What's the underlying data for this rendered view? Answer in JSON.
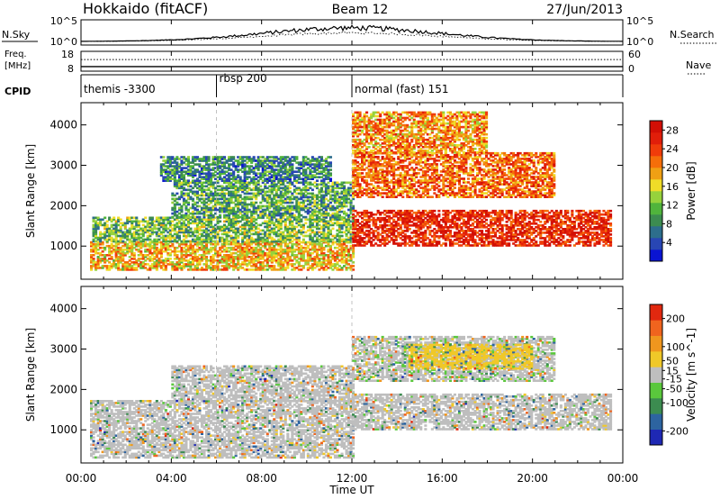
{
  "header": {
    "station": "Hokkaido (fitACF)",
    "beam": "Beam 12",
    "date": "27/Jun/2013"
  },
  "noise_panel": {
    "left_label": "N.Sky",
    "right_label": "N.Search",
    "left_ticks": [
      "10^5",
      "10^0"
    ],
    "right_ticks": [
      "10^5",
      "10^0"
    ]
  },
  "freq_panel": {
    "left_label_1": "Freq.",
    "left_label_2": "[MHz]",
    "right_label": "Nave",
    "left_ticks": [
      "18",
      "8"
    ],
    "right_ticks": [
      "60",
      "0"
    ],
    "freq_mhz": 10.3,
    "nave": 35
  },
  "cpid_panel": {
    "label": "CPID",
    "segments": [
      {
        "label": "themis -3300",
        "start_h": 0,
        "end_h": 6
      },
      {
        "label": "rbsp 200",
        "start_h": 6,
        "end_h": 12
      },
      {
        "label": "normal (fast) 151",
        "start_h": 12,
        "end_h": 24
      }
    ]
  },
  "x_axis": {
    "title": "Time UT",
    "range_h": [
      0,
      24
    ],
    "ticks_h": [
      0,
      4,
      8,
      12,
      16,
      20,
      24
    ],
    "tick_labels": [
      "00:00",
      "04:00",
      "08:00",
      "12:00",
      "16:00",
      "20:00",
      "00:00"
    ]
  },
  "chart_data": [
    {
      "type": "heatmap",
      "name": "power",
      "ylabel": "Slant Range [km]",
      "ylim": [
        180,
        4550
      ],
      "yticks": [
        1000,
        2000,
        3000,
        4000
      ],
      "colorbar": {
        "label": "Power [dB]",
        "range": [
          0,
          30
        ],
        "ticks": [
          "4",
          "8",
          "12",
          "16",
          "20",
          "24",
          "28"
        ],
        "tick_values": [
          4,
          8,
          12,
          16,
          20,
          24,
          28
        ],
        "colors": [
          "#0a14d2",
          "#2846b4",
          "#2d6e8c",
          "#3c8c50",
          "#50b43c",
          "#96d23c",
          "#f0dc28",
          "#f0a014",
          "#f56e0a",
          "#f03c0a",
          "#e11e0a",
          "#d20f05"
        ]
      },
      "regions": [
        {
          "t0": 0.4,
          "t1": 12,
          "r0": 400,
          "r1": 1100,
          "level": 18
        },
        {
          "t0": 0.5,
          "t1": 12,
          "r0": 1100,
          "r1": 1700,
          "level": 12
        },
        {
          "t0": 4,
          "t1": 12,
          "r0": 1700,
          "r1": 2600,
          "level": 10
        },
        {
          "t0": 3.5,
          "t1": 11,
          "r0": 2600,
          "r1": 3200,
          "level": 8
        },
        {
          "t0": 12,
          "t1": 23.5,
          "r0": 1000,
          "r1": 1900,
          "level": 26
        },
        {
          "t0": 12,
          "t1": 21,
          "r0": 2200,
          "r1": 3300,
          "level": 22
        },
        {
          "t0": 12,
          "t1": 18,
          "r0": 3300,
          "r1": 4300,
          "level": 20
        }
      ]
    },
    {
      "type": "heatmap",
      "name": "velocity",
      "ylabel": "Slant Range [km]",
      "ylim": [
        180,
        4550
      ],
      "yticks": [
        1000,
        2000,
        3000,
        4000
      ],
      "colorbar": {
        "label": "Velocity [m s^-1]",
        "range": [
          -250,
          250
        ],
        "ticks": [
          "200",
          "100",
          "50",
          "15",
          "-15",
          "-50",
          "-100",
          "-200"
        ],
        "tick_values": [
          200,
          100,
          50,
          15,
          -15,
          -50,
          -100,
          -200
        ],
        "colors": [
          "#1e28b4",
          "#2d64a0",
          "#3c8c50",
          "#5ac83c",
          "#bebebe",
          "#f0c828",
          "#f0961e",
          "#f0641e",
          "#e1280f"
        ]
      },
      "regions": [
        {
          "t0": 0.4,
          "t1": 12,
          "r0": 300,
          "r1": 1700,
          "level": 0
        },
        {
          "t0": 4,
          "t1": 12,
          "r0": 1700,
          "r1": 2600,
          "level": 0
        },
        {
          "t0": 12,
          "t1": 23.5,
          "r0": 1000,
          "r1": 1900,
          "level": 0
        },
        {
          "t0": 12,
          "t1": 21,
          "r0": 2200,
          "r1": 3300,
          "level": -20
        },
        {
          "t0": 14.5,
          "t1": 20,
          "r0": 2500,
          "r1": 3100,
          "level": 50
        }
      ]
    }
  ]
}
